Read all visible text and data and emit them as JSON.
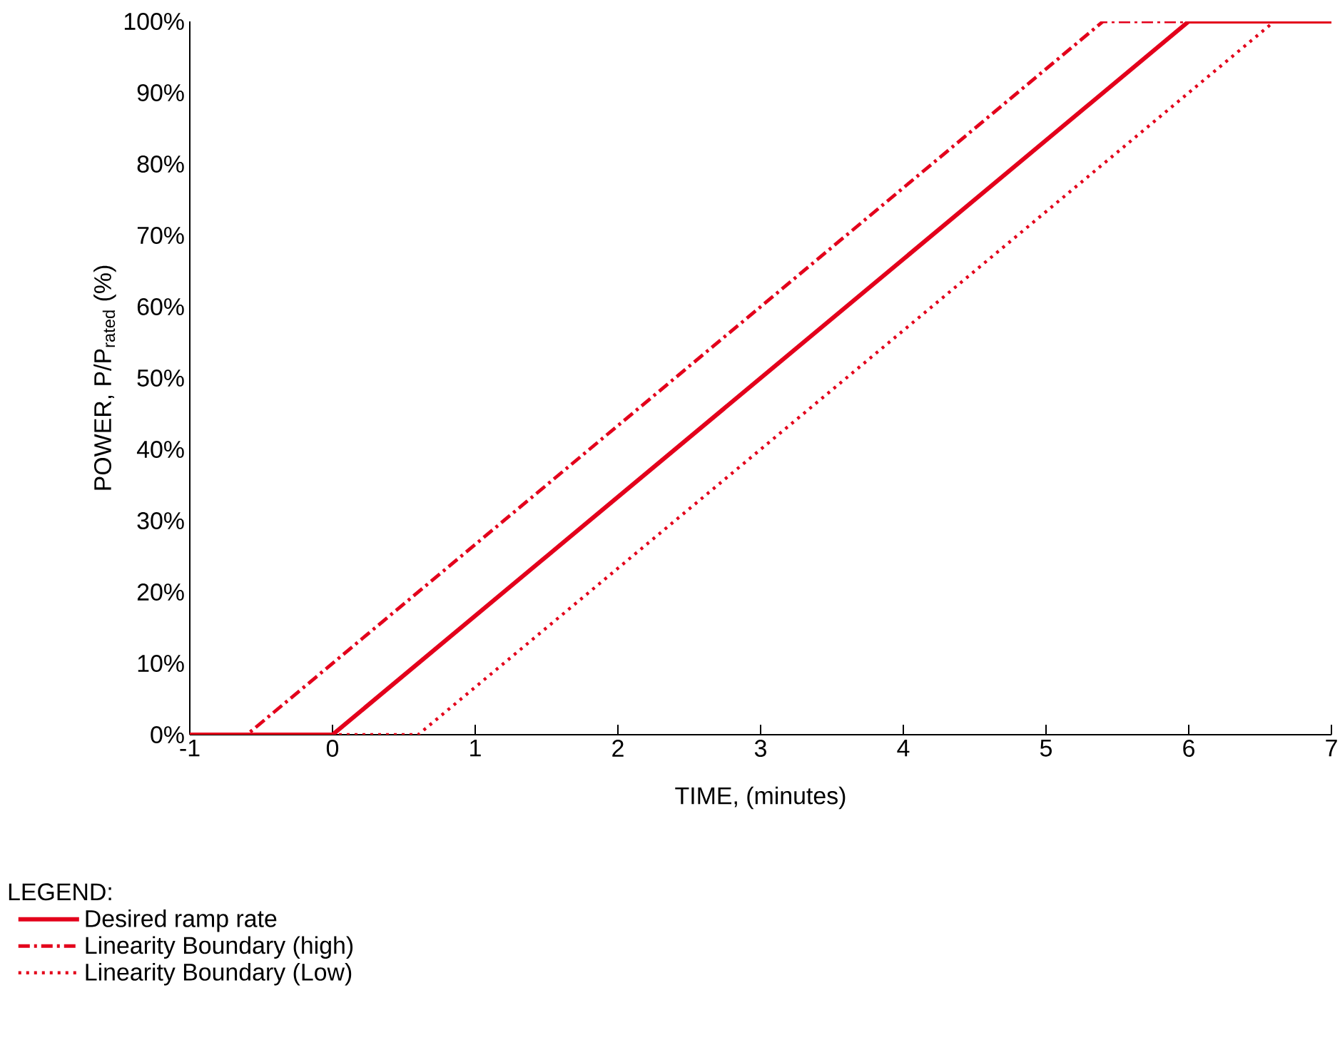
{
  "chart_data": {
    "type": "line",
    "xlabel": "TIME, (minutes)",
    "ylabel": "POWER, P/P$_{rated}$ (%)",
    "legend_title": "LEGEND:",
    "xlim": [
      -1,
      7
    ],
    "xticks": [
      -1,
      0,
      1,
      2,
      3,
      4,
      5,
      6,
      7
    ],
    "ylim": [
      0,
      100
    ],
    "yticks": [
      {
        "value": 0,
        "label": "0%"
      },
      {
        "value": 10,
        "label": "10%"
      },
      {
        "value": 20,
        "label": "20%"
      },
      {
        "value": 30,
        "label": "30%"
      },
      {
        "value": 40,
        "label": "40%"
      },
      {
        "value": 50,
        "label": "50%"
      },
      {
        "value": 60,
        "label": "60%"
      },
      {
        "value": 70,
        "label": "70%"
      },
      {
        "value": 80,
        "label": "80%"
      },
      {
        "value": 90,
        "label": "90%"
      },
      {
        "value": 100,
        "label": "100%"
      }
    ],
    "grid": false,
    "legend": "bottom left",
    "series": [
      {
        "name": "Desired ramp rate",
        "color": "#e3001b",
        "line_style": "solid",
        "x": [
          -1,
          0,
          6,
          7
        ],
        "values": [
          0,
          0,
          100,
          100
        ]
      },
      {
        "name": "Linearity Boundary (high)",
        "color": "#e3001b",
        "line_style": "dashdot",
        "x": [
          -1,
          -0.6,
          5.4,
          6
        ],
        "values": [
          0,
          0,
          100,
          100
        ]
      },
      {
        "name": "Linearity Boundary (Low)",
        "color": "#e3001b",
        "line_style": "dotted",
        "x": [
          -1,
          0.6,
          6.6,
          7
        ],
        "values": [
          0,
          0,
          100,
          100
        ]
      }
    ]
  }
}
